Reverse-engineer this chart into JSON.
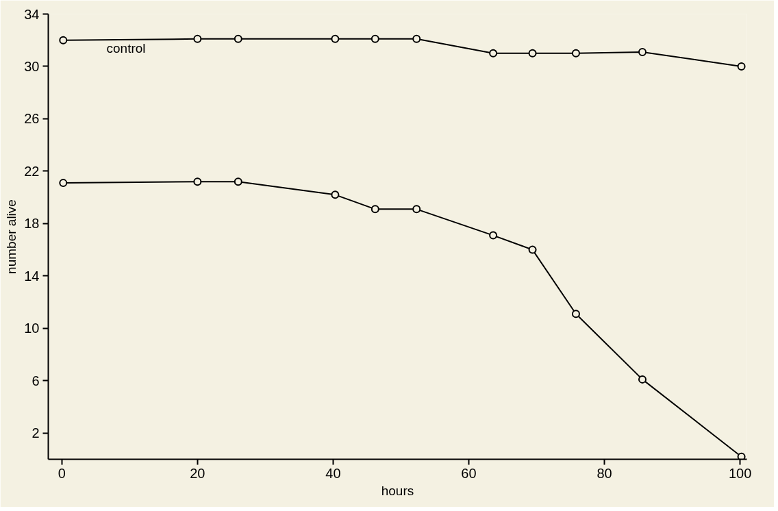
{
  "chart_data": {
    "type": "line",
    "xlabel": "hours",
    "ylabel": "number alive",
    "xlim": [
      -2,
      101
    ],
    "ylim": [
      0,
      34
    ],
    "xticks": [
      0,
      20,
      40,
      60,
      80,
      100
    ],
    "yticks": [
      2,
      6,
      10,
      14,
      18,
      22,
      26,
      30,
      34
    ],
    "grid": false,
    "marker": "circle",
    "line_style": "solid",
    "annotations": [
      "control"
    ],
    "series": [
      {
        "color": "#000000",
        "x": [
          0.2,
          20,
          26,
          40.3,
          46.2,
          52.3,
          63.6,
          69.4,
          75.8,
          85.6,
          100.2
        ],
        "values": [
          32,
          32.1,
          32.1,
          32.1,
          32.1,
          32.1,
          31,
          31,
          31,
          31.1,
          30
        ]
      },
      {
        "color": "#000000",
        "x": [
          0.2,
          20,
          26,
          40.3,
          46.2,
          52.3,
          63.6,
          69.4,
          75.8,
          85.6,
          100.2
        ],
        "values": [
          21.1,
          21.2,
          21.2,
          20.2,
          19.1,
          19.1,
          17.1,
          16,
          11.1,
          6.1,
          0.2
        ]
      }
    ]
  }
}
